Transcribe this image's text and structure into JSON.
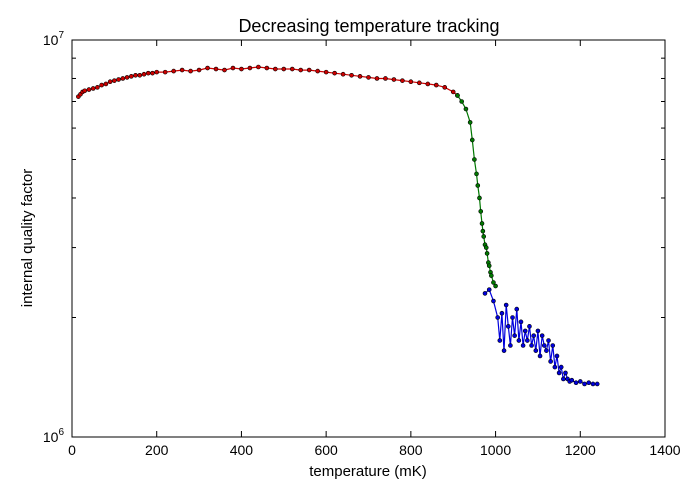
{
  "chart_data": {
    "type": "line",
    "title": "Decreasing temperature tracking",
    "xlabel": "temperature (mK)",
    "ylabel": "internal quality factor",
    "xlim": [
      0,
      1400
    ],
    "ylim": [
      1000000,
      10000000
    ],
    "y_scale": "log",
    "x_ticks": [
      0,
      200,
      400,
      600,
      800,
      1000,
      1200,
      1400
    ],
    "x_tick_labels": [
      "0",
      "200",
      "400",
      "600",
      "800",
      "1000",
      "1200",
      "1400"
    ],
    "y_ticks": [
      1000000,
      10000000
    ],
    "y_tick_base": [
      "10",
      "10"
    ],
    "y_tick_exp": [
      "6",
      "7"
    ],
    "grid": false,
    "marker": "dot",
    "series": [
      {
        "color": "#cc0000",
        "x": [
          15,
          20,
          25,
          30,
          40,
          50,
          60,
          70,
          80,
          90,
          100,
          110,
          120,
          130,
          140,
          150,
          160,
          170,
          180,
          190,
          200,
          220,
          240,
          260,
          280,
          300,
          320,
          340,
          360,
          380,
          400,
          420,
          440,
          460,
          480,
          500,
          520,
          540,
          560,
          580,
          600,
          620,
          640,
          660,
          680,
          700,
          720,
          740,
          760,
          780,
          800,
          820,
          840,
          860,
          880,
          900,
          910
        ],
        "y": [
          7200000,
          7300000,
          7400000,
          7450000,
          7500000,
          7550000,
          7600000,
          7700000,
          7750000,
          7850000,
          7900000,
          7950000,
          8000000,
          8050000,
          8100000,
          8150000,
          8150000,
          8200000,
          8250000,
          8250000,
          8300000,
          8300000,
          8350000,
          8400000,
          8350000,
          8400000,
          8500000,
          8450000,
          8400000,
          8500000,
          8450000,
          8500000,
          8550000,
          8500000,
          8450000,
          8450000,
          8450000,
          8400000,
          8400000,
          8350000,
          8300000,
          8250000,
          8200000,
          8150000,
          8100000,
          8050000,
          8000000,
          8000000,
          7950000,
          7900000,
          7850000,
          7800000,
          7750000,
          7700000,
          7600000,
          7400000,
          7250000
        ]
      },
      {
        "color": "#007700",
        "x": [
          910,
          920,
          930,
          940,
          945,
          950,
          955,
          958,
          962,
          965,
          968,
          970,
          972,
          975,
          978,
          980,
          983,
          985,
          988,
          990,
          995,
          1000
        ],
        "y": [
          7250000,
          7000000,
          6700000,
          6200000,
          5600000,
          5000000,
          4600000,
          4300000,
          4000000,
          3700000,
          3450000,
          3300000,
          3200000,
          3050000,
          3000000,
          2900000,
          2750000,
          2700000,
          2600000,
          2550000,
          2450000,
          2400000
        ]
      },
      {
        "color": "#0000dd",
        "x": [
          975,
          985,
          995,
          1005,
          1010,
          1015,
          1020,
          1025,
          1030,
          1035,
          1040,
          1045,
          1050,
          1055,
          1060,
          1065,
          1070,
          1075,
          1080,
          1085,
          1090,
          1095,
          1100,
          1105,
          1110,
          1115,
          1120,
          1125,
          1130,
          1135,
          1140,
          1145,
          1150,
          1155,
          1160,
          1165,
          1170,
          1175,
          1180,
          1190,
          1200,
          1210,
          1220,
          1230,
          1240
        ],
        "y": [
          2300000,
          2350000,
          2200000,
          2000000,
          1750000,
          2050000,
          1650000,
          2150000,
          1900000,
          1700000,
          2000000,
          1800000,
          2100000,
          1750000,
          1950000,
          1700000,
          1850000,
          1750000,
          1900000,
          1700000,
          1800000,
          1650000,
          1850000,
          1600000,
          1800000,
          1700000,
          1650000,
          1750000,
          1550000,
          1700000,
          1500000,
          1600000,
          1450000,
          1500000,
          1400000,
          1450000,
          1400000,
          1380000,
          1390000,
          1370000,
          1380000,
          1360000,
          1370000,
          1360000,
          1360000
        ]
      }
    ]
  }
}
